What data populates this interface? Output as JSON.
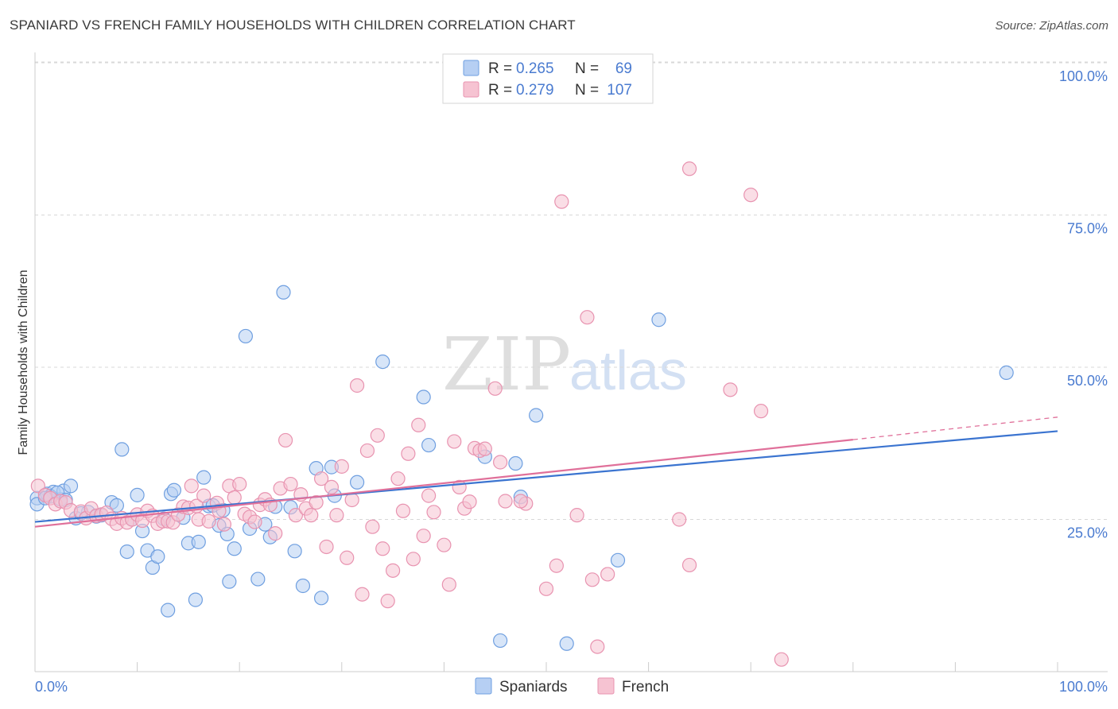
{
  "title": "SPANIARD VS FRENCH FAMILY HOUSEHOLDS WITH CHILDREN CORRELATION CHART",
  "source": "Source: ZipAtlas.com",
  "watermark": {
    "part1": "ZIP",
    "part2": "atlas"
  },
  "colors": {
    "spaniards_fill": "#b6cff3",
    "spaniards_stroke": "#6f9fe0",
    "spaniards_line": "#3b74d0",
    "french_fill": "#f6c3d2",
    "french_stroke": "#e893b0",
    "french_line": "#e0709a",
    "tick": "#4a7bd0",
    "grid": "#d8d8d8"
  },
  "legend": {
    "rows": [
      {
        "r_label": "R =",
        "r_value": "0.265",
        "n_label": "N =",
        "n_value": "69"
      },
      {
        "r_label": "R =",
        "r_value": "0.279",
        "n_label": "N =",
        "n_value": "107"
      }
    ]
  },
  "bottom_legend": {
    "spaniards": "Spaniards",
    "french": "French"
  },
  "chart_data": {
    "type": "scatter",
    "title": "SPANIARD VS FRENCH FAMILY HOUSEHOLDS WITH CHILDREN CORRELATION CHART",
    "xlabel": "",
    "ylabel": "Family Households with Children",
    "xlim": [
      0,
      100
    ],
    "ylim": [
      0,
      105
    ],
    "x_tick_labels": [
      "0.0%",
      "100.0%"
    ],
    "y_ticks": [
      25,
      50,
      75,
      100
    ],
    "y_tick_labels": [
      "25.0%",
      "50.0%",
      "75.0%",
      "100.0%"
    ],
    "grid": true,
    "series": [
      {
        "name": "Spaniards",
        "r": 0.265,
        "n": 69,
        "trend": {
          "x": [
            0,
            100
          ],
          "y": [
            24.6,
            39.5
          ]
        },
        "points": [
          [
            0.2,
            28.5
          ],
          [
            1.2,
            29.2
          ],
          [
            1.8,
            29.5
          ],
          [
            2.5,
            28.3
          ],
          [
            2.8,
            29.7
          ],
          [
            1.5,
            28.8
          ],
          [
            3.5,
            30.5
          ],
          [
            4,
            25.2
          ],
          [
            5.2,
            26.2
          ],
          [
            6,
            25.5
          ],
          [
            6.5,
            25.7
          ],
          [
            7.5,
            27.8
          ],
          [
            8,
            27.3
          ],
          [
            8.5,
            36.5
          ],
          [
            9,
            19.7
          ],
          [
            9.5,
            25
          ],
          [
            10,
            29
          ],
          [
            10.5,
            23.1
          ],
          [
            11,
            19.9
          ],
          [
            11.5,
            17.1
          ],
          [
            12,
            18.9
          ],
          [
            12.6,
            25.1
          ],
          [
            13,
            10.1
          ],
          [
            13.3,
            29.2
          ],
          [
            13.6,
            29.8
          ],
          [
            14.5,
            25.3
          ],
          [
            15,
            21.1
          ],
          [
            15.7,
            11.8
          ],
          [
            16,
            21.3
          ],
          [
            16.5,
            31.9
          ],
          [
            17,
            27.2
          ],
          [
            17.4,
            27.3
          ],
          [
            18,
            24
          ],
          [
            18.4,
            26.5
          ],
          [
            18.8,
            22.6
          ],
          [
            19,
            14.8
          ],
          [
            19.5,
            20.2
          ],
          [
            20.6,
            55.1
          ],
          [
            21,
            23.5
          ],
          [
            21.8,
            15.2
          ],
          [
            22.5,
            24.2
          ],
          [
            23,
            22.1
          ],
          [
            23.5,
            27.1
          ],
          [
            24.3,
            62.3
          ],
          [
            25,
            27
          ],
          [
            25.4,
            19.8
          ],
          [
            26.2,
            14.1
          ],
          [
            27.5,
            33.4
          ],
          [
            28,
            12.1
          ],
          [
            29,
            33.6
          ],
          [
            29.3,
            28.9
          ],
          [
            31.5,
            31.1
          ],
          [
            34,
            50.9
          ],
          [
            38,
            45.1
          ],
          [
            38.5,
            37.2
          ],
          [
            44,
            35.3
          ],
          [
            45.5,
            5.1
          ],
          [
            47,
            34.2
          ],
          [
            47.5,
            28.7
          ],
          [
            49,
            42.1
          ],
          [
            52,
            4.6
          ],
          [
            57,
            18.3
          ],
          [
            61,
            57.8
          ],
          [
            95,
            49.1
          ],
          [
            0.2,
            27.5
          ],
          [
            1,
            28.5
          ],
          [
            2.2,
            29.4
          ],
          [
            3,
            28.2
          ],
          [
            4.5,
            26
          ]
        ]
      },
      {
        "name": "French",
        "r": 0.279,
        "n": 107,
        "trend": {
          "x": [
            0,
            80
          ],
          "y": [
            23.8,
            38.1
          ]
        },
        "trend_ext": {
          "x": [
            80,
            100
          ],
          "y": [
            38.1,
            41.8
          ]
        },
        "points": [
          [
            0.3,
            30.5
          ],
          [
            1,
            29
          ],
          [
            1.5,
            28.5
          ],
          [
            2,
            27.5
          ],
          [
            2.5,
            28
          ],
          [
            3,
            27.8
          ],
          [
            3.5,
            26.5
          ],
          [
            4.5,
            26.3
          ],
          [
            5,
            25.2
          ],
          [
            5.5,
            26.8
          ],
          [
            6,
            25.6
          ],
          [
            6.5,
            25.8
          ],
          [
            7,
            26.1
          ],
          [
            7.5,
            25.1
          ],
          [
            8,
            24.3
          ],
          [
            8.5,
            25.2
          ],
          [
            9,
            24.5
          ],
          [
            9.5,
            25
          ],
          [
            10,
            25.8
          ],
          [
            10.5,
            24.8
          ],
          [
            11,
            26.4
          ],
          [
            11.5,
            25.6
          ],
          [
            12,
            24.3
          ],
          [
            12.5,
            24.7
          ],
          [
            13,
            24.7
          ],
          [
            13.5,
            24.5
          ],
          [
            14,
            25.8
          ],
          [
            14.5,
            27.1
          ],
          [
            15,
            26.9
          ],
          [
            15.3,
            30.5
          ],
          [
            15.8,
            27.2
          ],
          [
            16,
            25
          ],
          [
            16.5,
            28.9
          ],
          [
            17,
            24.7
          ],
          [
            17.8,
            27.7
          ],
          [
            18,
            26.4
          ],
          [
            18.5,
            24.2
          ],
          [
            19,
            30.5
          ],
          [
            19.5,
            28.6
          ],
          [
            20,
            30.8
          ],
          [
            20.5,
            25.9
          ],
          [
            21,
            25.4
          ],
          [
            21.5,
            24.6
          ],
          [
            22,
            27.4
          ],
          [
            22.5,
            28.3
          ],
          [
            23,
            27.4
          ],
          [
            23.5,
            22.7
          ],
          [
            24,
            30.1
          ],
          [
            24.5,
            38
          ],
          [
            25,
            30.8
          ],
          [
            25.5,
            25.7
          ],
          [
            26,
            29.1
          ],
          [
            26.5,
            26.8
          ],
          [
            27,
            25.7
          ],
          [
            27.5,
            27.8
          ],
          [
            28,
            31.7
          ],
          [
            28.5,
            20.5
          ],
          [
            29,
            30.3
          ],
          [
            29.5,
            25.7
          ],
          [
            30,
            33.7
          ],
          [
            30.5,
            18.7
          ],
          [
            31,
            28.2
          ],
          [
            31.5,
            47
          ],
          [
            32,
            12.7
          ],
          [
            32.5,
            36.3
          ],
          [
            33,
            23.8
          ],
          [
            33.5,
            38.8
          ],
          [
            34,
            20.2
          ],
          [
            34.5,
            11.6
          ],
          [
            35,
            16.6
          ],
          [
            35.5,
            31.7
          ],
          [
            36,
            26.4
          ],
          [
            36.5,
            35.8
          ],
          [
            37,
            18.5
          ],
          [
            37.5,
            40.5
          ],
          [
            38,
            22.3
          ],
          [
            38.5,
            28.9
          ],
          [
            39,
            26.2
          ],
          [
            40,
            20.8
          ],
          [
            40.5,
            14.3
          ],
          [
            41,
            37.8
          ],
          [
            41.5,
            30.3
          ],
          [
            42,
            26.8
          ],
          [
            42.5,
            27.9
          ],
          [
            43,
            36.7
          ],
          [
            43.5,
            36.3
          ],
          [
            44,
            36.6
          ],
          [
            45,
            46.5
          ],
          [
            45.5,
            34.4
          ],
          [
            46,
            28
          ],
          [
            48,
            27.6
          ],
          [
            50,
            13.6
          ],
          [
            51,
            17.4
          ],
          [
            51.5,
            77.2
          ],
          [
            53,
            25.7
          ],
          [
            54,
            58.2
          ],
          [
            54.5,
            15.1
          ],
          [
            55,
            4.1
          ],
          [
            64,
            82.6
          ],
          [
            64,
            17.5
          ],
          [
            68,
            46.3
          ],
          [
            70,
            78.3
          ],
          [
            71,
            42.8
          ],
          [
            73,
            2
          ],
          [
            63,
            25
          ],
          [
            56,
            16
          ],
          [
            47.5,
            28
          ]
        ]
      }
    ]
  }
}
